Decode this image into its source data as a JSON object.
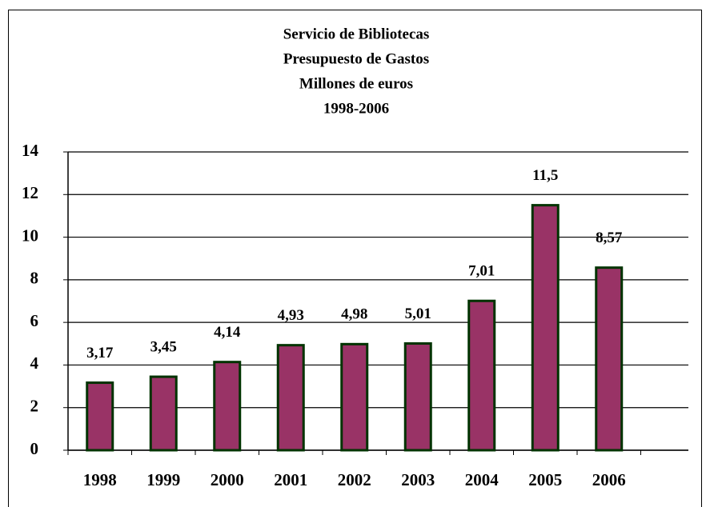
{
  "chart_data": {
    "type": "bar",
    "title": [
      "Servicio de Bibliotecas",
      "Presupuesto de Gastos",
      "Millones de euros",
      "1998-2006"
    ],
    "categories": [
      "1998",
      "1999",
      "2000",
      "2001",
      "2002",
      "2003",
      "2004",
      "2005",
      "2006"
    ],
    "values": [
      3.17,
      3.45,
      4.14,
      4.93,
      4.98,
      5.01,
      7.01,
      11.5,
      8.57
    ],
    "value_labels": [
      "3,17",
      "3,45",
      "4,14",
      "4,93",
      "4,98",
      "5,01",
      "7,01",
      "11,5",
      "8,57"
    ],
    "color": "#993366",
    "edge_color": "#003300",
    "ylim": [
      0,
      14
    ],
    "yticks": [
      0,
      2,
      4,
      6,
      8,
      10,
      12,
      14
    ],
    "grid": true
  }
}
